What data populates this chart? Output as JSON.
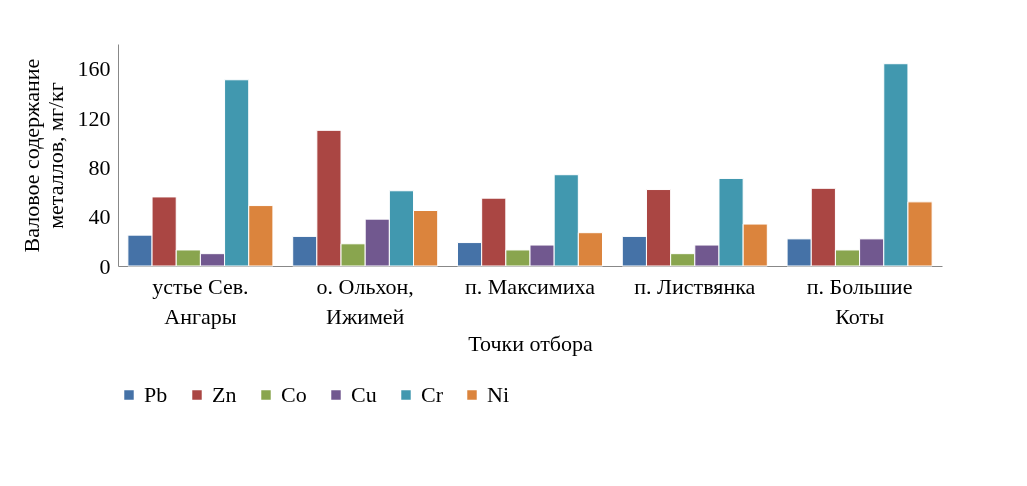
{
  "chart_data": {
    "type": "bar",
    "xlabel": "Точки отбора",
    "ylabel": "Валовое содержание металлов, мг/кг",
    "categories": [
      "устье Сев. Ангары",
      "о. Ольхон, Ижимей",
      "п. Максимиха",
      "п. Листвянка",
      "п. Большие Коты"
    ],
    "series": [
      {
        "name": "Pb",
        "color": "#4572a7",
        "values": [
          25,
          24,
          19,
          24,
          22
        ]
      },
      {
        "name": "Zn",
        "color": "#aa4643",
        "values": [
          56,
          110,
          55,
          62,
          63
        ]
      },
      {
        "name": "Co",
        "color": "#89a54e",
        "values": [
          13,
          18,
          13,
          10,
          13
        ]
      },
      {
        "name": "Cu",
        "color": "#71588f",
        "values": [
          10,
          38,
          17,
          17,
          22
        ]
      },
      {
        "name": "Cr",
        "color": "#4198af",
        "values": [
          151,
          61,
          74,
          71,
          164
        ]
      },
      {
        "name": "Ni",
        "color": "#db843d",
        "values": [
          49,
          45,
          27,
          34,
          52
        ]
      }
    ],
    "ylim": [
      0,
      180
    ],
    "yticks": [
      0,
      40,
      80,
      120,
      160
    ],
    "grid": false,
    "legend": "bottom"
  }
}
